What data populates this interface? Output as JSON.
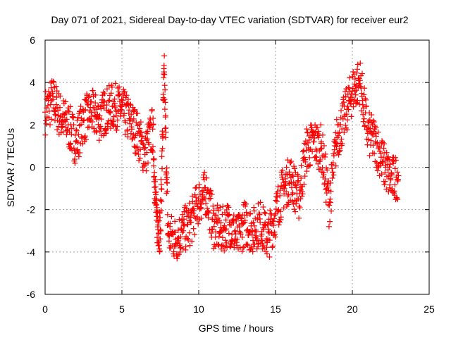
{
  "chart_data": {
    "type": "scatter",
    "title": "Day 071 of 2021, Sidereal Day-to-day VTEC variation (SDTVAR) for receiver eur2",
    "xlabel": "GPS time / hours",
    "ylabel": "SDTVAR / TECUs",
    "xlim": [
      0,
      25
    ],
    "ylim": [
      -6,
      6
    ],
    "xticks": [
      "0",
      "5",
      "10",
      "15",
      "20",
      "25"
    ],
    "yticks": [
      "-6",
      "-4",
      "-2",
      "0",
      "2",
      "4",
      "6"
    ],
    "grid": true,
    "marker": "+",
    "series": [
      {
        "name": "eur2",
        "color": "#ff0000",
        "x": [
          0.0,
          0.5,
          1.0,
          1.5,
          2.0,
          2.5,
          3.0,
          3.5,
          4.0,
          4.5,
          5.0,
          5.5,
          6.0,
          6.5,
          7.0,
          7.25,
          7.5,
          7.75,
          8.0,
          8.5,
          9.0,
          9.5,
          10.0,
          10.5,
          11.0,
          11.5,
          12.0,
          12.5,
          13.0,
          13.5,
          14.0,
          14.5,
          15.0,
          15.5,
          16.0,
          16.5,
          17.0,
          17.5,
          18.0,
          18.5,
          19.0,
          19.5,
          20.0,
          20.5,
          21.0,
          21.5,
          22.0,
          22.5,
          23.0
        ],
        "y": [
          2.6,
          3.2,
          2.4,
          2.0,
          1.2,
          2.2,
          2.6,
          2.3,
          2.7,
          2.9,
          2.7,
          2.2,
          1.6,
          0.6,
          1.8,
          -2.5,
          -3.0,
          4.5,
          -3.2,
          -3.4,
          -3.0,
          -2.6,
          -1.6,
          -1.2,
          -2.8,
          -3.0,
          -2.6,
          -3.4,
          -2.6,
          -3.0,
          -2.6,
          -3.4,
          -2.2,
          -1.0,
          -0.5,
          -1.5,
          0.8,
          1.2,
          0.9,
          -1.8,
          1.4,
          2.4,
          3.6,
          4.1,
          1.6,
          1.2,
          0.2,
          -0.6,
          -0.4
        ]
      }
    ]
  }
}
